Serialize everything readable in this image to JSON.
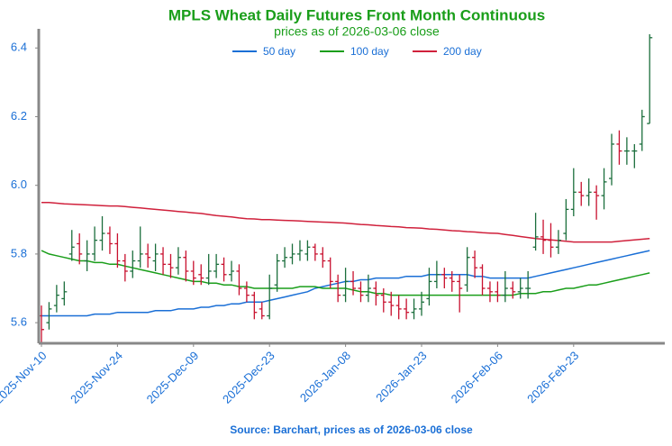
{
  "chart_data": {
    "type": "ohlc",
    "title": "MPLS Wheat Daily Futures Front Month Continuous",
    "subtitle": "prices as of 2026-03-06 close",
    "source": "Source: Barchart, prices as of 2026-03-06 close",
    "categories": [
      "2025-Nov-10",
      null,
      null,
      null,
      null,
      null,
      null,
      null,
      null,
      null,
      "2025-Nov-24",
      null,
      null,
      null,
      null,
      null,
      null,
      null,
      null,
      null,
      "2025-Dec-09",
      null,
      null,
      null,
      null,
      null,
      null,
      null,
      null,
      null,
      "2025-Dec-23",
      null,
      null,
      null,
      null,
      null,
      null,
      null,
      null,
      null,
      "2026-Jan-08",
      null,
      null,
      null,
      null,
      null,
      null,
      null,
      null,
      null,
      "2026-Jan-23",
      null,
      null,
      null,
      null,
      null,
      null,
      null,
      null,
      null,
      "2026-Feb-06",
      null,
      null,
      null,
      null,
      null,
      null,
      null,
      null,
      null,
      "2026-Feb-23",
      null,
      null,
      null,
      null,
      null,
      null,
      null,
      null,
      null,
      null
    ],
    "open": [
      5.62,
      5.6,
      5.65,
      5.67,
      5.8,
      5.83,
      5.78,
      5.8,
      5.84,
      5.86,
      5.83,
      5.78,
      5.75,
      5.78,
      5.8,
      5.78,
      5.8,
      5.77,
      5.76,
      5.79,
      5.75,
      5.74,
      5.73,
      5.75,
      5.77,
      5.74,
      5.75,
      5.7,
      5.68,
      5.64,
      5.62,
      5.71,
      5.78,
      5.79,
      5.8,
      5.8,
      5.82,
      5.8,
      5.78,
      5.72,
      5.68,
      5.72,
      5.7,
      5.68,
      5.7,
      5.68,
      5.66,
      5.65,
      5.64,
      5.63,
      5.64,
      5.67,
      5.72,
      5.74,
      5.73,
      5.72,
      5.71,
      5.79,
      5.76,
      5.7,
      5.69,
      5.68,
      5.7,
      5.69,
      5.7,
      5.82,
      5.85,
      5.84,
      5.82,
      5.86,
      5.93,
      5.98,
      5.97,
      5.98,
      5.97,
      6.02,
      6.12,
      6.1,
      6.1,
      6.12,
      6.18
    ],
    "high": [
      5.65,
      5.66,
      5.71,
      5.72,
      5.87,
      5.86,
      5.84,
      5.88,
      5.91,
      5.88,
      5.86,
      5.8,
      5.81,
      5.88,
      5.83,
      5.83,
      5.82,
      5.8,
      5.82,
      5.81,
      5.78,
      5.77,
      5.8,
      5.8,
      5.79,
      5.78,
      5.77,
      5.72,
      5.69,
      5.66,
      5.74,
      5.8,
      5.82,
      5.83,
      5.84,
      5.84,
      5.83,
      5.82,
      5.79,
      5.74,
      5.76,
      5.75,
      5.72,
      5.74,
      5.72,
      5.7,
      5.69,
      5.68,
      5.67,
      5.67,
      5.69,
      5.76,
      5.78,
      5.76,
      5.75,
      5.74,
      5.82,
      5.81,
      5.77,
      5.72,
      5.72,
      5.75,
      5.72,
      5.73,
      5.75,
      5.92,
      5.9,
      5.89,
      5.87,
      5.96,
      6.05,
      6.01,
      6.02,
      6.0,
      6.05,
      6.15,
      6.16,
      6.14,
      6.12,
      6.22,
      6.44
    ],
    "low": [
      5.54,
      5.58,
      5.63,
      5.65,
      5.78,
      5.77,
      5.75,
      5.78,
      5.81,
      5.8,
      5.76,
      5.72,
      5.73,
      5.76,
      5.76,
      5.75,
      5.74,
      5.73,
      5.74,
      5.72,
      5.71,
      5.71,
      5.71,
      5.73,
      5.72,
      5.72,
      5.68,
      5.66,
      5.61,
      5.61,
      5.61,
      5.69,
      5.76,
      5.77,
      5.78,
      5.78,
      5.78,
      5.76,
      5.7,
      5.66,
      5.66,
      5.68,
      5.66,
      5.66,
      5.65,
      5.63,
      5.62,
      5.61,
      5.61,
      5.61,
      5.62,
      5.65,
      5.7,
      5.7,
      5.69,
      5.63,
      5.69,
      5.73,
      5.68,
      5.66,
      5.66,
      5.66,
      5.67,
      5.67,
      5.67,
      5.81,
      5.8,
      5.79,
      5.8,
      5.84,
      5.91,
      5.94,
      5.94,
      5.9,
      5.93,
      6.0,
      6.06,
      6.06,
      6.05,
      6.1,
      6.18
    ],
    "close": [
      5.58,
      5.64,
      5.68,
      5.69,
      5.82,
      5.8,
      5.8,
      5.84,
      5.86,
      5.83,
      5.78,
      5.75,
      5.78,
      5.8,
      5.79,
      5.8,
      5.77,
      5.76,
      5.79,
      5.75,
      5.73,
      5.73,
      5.75,
      5.77,
      5.74,
      5.75,
      5.7,
      5.68,
      5.63,
      5.62,
      5.7,
      5.78,
      5.79,
      5.8,
      5.81,
      5.82,
      5.8,
      5.78,
      5.72,
      5.68,
      5.72,
      5.7,
      5.68,
      5.7,
      5.68,
      5.66,
      5.65,
      5.64,
      5.63,
      5.64,
      5.66,
      5.72,
      5.74,
      5.73,
      5.72,
      5.7,
      5.79,
      5.76,
      5.7,
      5.69,
      5.68,
      5.7,
      5.69,
      5.7,
      5.7,
      5.85,
      5.84,
      5.82,
      5.84,
      5.93,
      5.98,
      5.97,
      5.98,
      5.97,
      6.01,
      6.12,
      6.1,
      6.1,
      6.1,
      6.2,
      6.43
    ],
    "up_color": "#1b6e3c",
    "down_color": "#c8102e",
    "series": [
      {
        "name": "50 day",
        "color": "#1a6fd6",
        "values": [
          5.62,
          5.62,
          5.62,
          5.62,
          5.62,
          5.62,
          5.62,
          5.625,
          5.625,
          5.625,
          5.63,
          5.63,
          5.63,
          5.63,
          5.63,
          5.635,
          5.635,
          5.635,
          5.64,
          5.64,
          5.64,
          5.645,
          5.645,
          5.65,
          5.65,
          5.655,
          5.655,
          5.66,
          5.66,
          5.66,
          5.665,
          5.67,
          5.675,
          5.68,
          5.685,
          5.69,
          5.7,
          5.705,
          5.71,
          5.715,
          5.72,
          5.72,
          5.725,
          5.725,
          5.73,
          5.73,
          5.73,
          5.73,
          5.735,
          5.735,
          5.735,
          5.74,
          5.74,
          5.74,
          5.74,
          5.74,
          5.74,
          5.735,
          5.735,
          5.73,
          5.73,
          5.73,
          5.73,
          5.73,
          5.73,
          5.735,
          5.74,
          5.745,
          5.75,
          5.755,
          5.76,
          5.765,
          5.77,
          5.775,
          5.78,
          5.785,
          5.79,
          5.795,
          5.8,
          5.805,
          5.81
        ]
      },
      {
        "name": "100 day",
        "color": "#1a9e1a",
        "values": [
          5.81,
          5.8,
          5.795,
          5.79,
          5.785,
          5.78,
          5.78,
          5.775,
          5.775,
          5.77,
          5.77,
          5.765,
          5.76,
          5.755,
          5.75,
          5.745,
          5.74,
          5.735,
          5.73,
          5.725,
          5.72,
          5.72,
          5.715,
          5.715,
          5.71,
          5.71,
          5.705,
          5.705,
          5.7,
          5.7,
          5.7,
          5.7,
          5.7,
          5.7,
          5.705,
          5.705,
          5.705,
          5.7,
          5.7,
          5.7,
          5.7,
          5.695,
          5.69,
          5.69,
          5.685,
          5.685,
          5.68,
          5.68,
          5.68,
          5.68,
          5.68,
          5.68,
          5.68,
          5.68,
          5.68,
          5.68,
          5.68,
          5.68,
          5.68,
          5.68,
          5.68,
          5.68,
          5.68,
          5.685,
          5.685,
          5.685,
          5.69,
          5.69,
          5.695,
          5.7,
          5.7,
          5.705,
          5.71,
          5.71,
          5.715,
          5.72,
          5.725,
          5.73,
          5.735,
          5.74,
          5.745
        ]
      },
      {
        "name": "200 day",
        "color": "#d0213c",
        "values": [
          5.95,
          5.95,
          5.948,
          5.946,
          5.945,
          5.944,
          5.943,
          5.942,
          5.941,
          5.94,
          5.94,
          5.938,
          5.936,
          5.934,
          5.932,
          5.93,
          5.928,
          5.926,
          5.924,
          5.922,
          5.92,
          5.918,
          5.915,
          5.912,
          5.91,
          5.908,
          5.905,
          5.903,
          5.902,
          5.9,
          5.9,
          5.899,
          5.898,
          5.897,
          5.896,
          5.895,
          5.894,
          5.893,
          5.892,
          5.891,
          5.89,
          5.888,
          5.886,
          5.885,
          5.883,
          5.882,
          5.88,
          5.879,
          5.877,
          5.876,
          5.875,
          5.873,
          5.872,
          5.87,
          5.868,
          5.867,
          5.865,
          5.864,
          5.862,
          5.861,
          5.86,
          5.857,
          5.854,
          5.851,
          5.848,
          5.845,
          5.843,
          5.841,
          5.839,
          5.837,
          5.835,
          5.835,
          5.835,
          5.835,
          5.835,
          5.835,
          5.837,
          5.839,
          5.841,
          5.843,
          5.845
        ]
      }
    ],
    "ylim": [
      5.54,
      6.44
    ],
    "yticks": [
      5.6,
      5.8,
      {
        "value": 6,
        "label": "6.0"
      },
      6.2,
      6.4
    ],
    "title_color": "#1a9e1a",
    "text_color": "#1a6fd6",
    "axis_color": "#888888"
  }
}
